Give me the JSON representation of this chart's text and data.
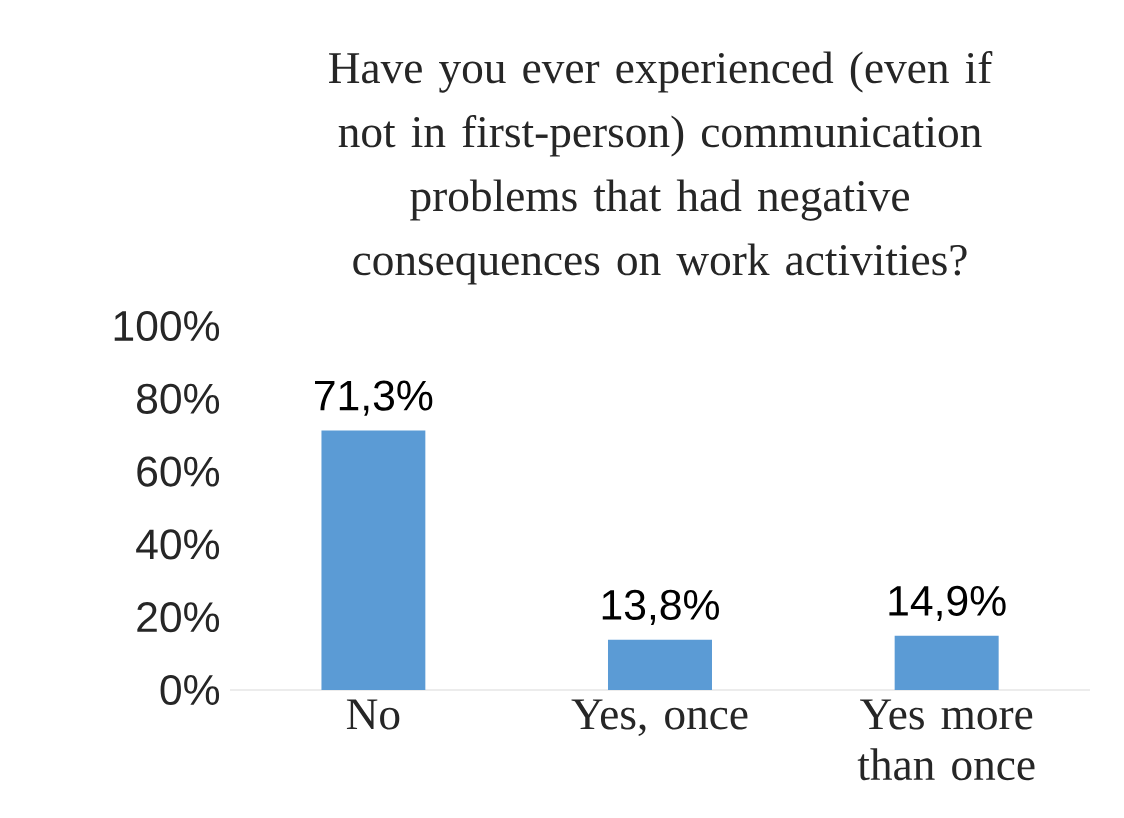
{
  "chart_data": {
    "type": "bar",
    "title": "Have you ever experienced (even if not in first-person) communication problems that had negative consequences on work activities?",
    "categories": [
      "No",
      "Yes, once",
      "Yes more than once"
    ],
    "values": [
      71.3,
      13.8,
      14.9
    ],
    "value_labels": [
      "71,3%",
      "13,8%",
      "14,9%"
    ],
    "color": "#5b9bd5",
    "ylim": [
      0,
      100
    ],
    "yticks": [
      {
        "value": 0,
        "label": "0%"
      },
      {
        "value": 20,
        "label": "20%"
      },
      {
        "value": 40,
        "label": "40%"
      },
      {
        "value": 60,
        "label": "60%"
      },
      {
        "value": 80,
        "label": "80%"
      },
      {
        "value": 100,
        "label": "100%"
      }
    ]
  }
}
